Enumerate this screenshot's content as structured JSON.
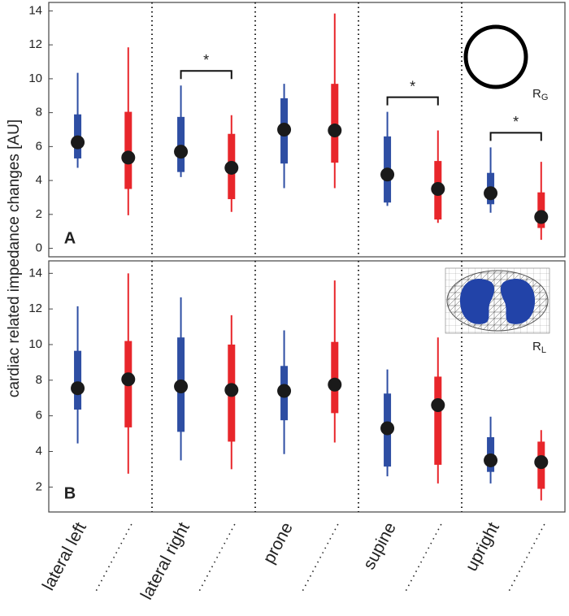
{
  "chart_data": [
    {
      "type": "box",
      "panel_label": "A",
      "ylabel": "cardiac related impedance changes [AU]",
      "ylim": [
        -0.5,
        14.5
      ],
      "yticks": [
        0,
        2,
        4,
        6,
        8,
        10,
        12,
        14
      ],
      "series": [
        {
          "color": "#2e4ea3",
          "whislo": [
            4.75,
            4.2,
            3.55,
            2.5,
            2.1
          ],
          "q1": [
            5.3,
            4.5,
            5.0,
            2.7,
            2.6
          ],
          "med": [
            6.25,
            5.7,
            7.0,
            4.35,
            3.25
          ],
          "q3": [
            7.9,
            7.75,
            8.85,
            6.6,
            4.45
          ],
          "whishi": [
            10.35,
            9.6,
            9.7,
            8.05,
            5.95
          ]
        },
        {
          "color": "#e8262b",
          "whislo": [
            1.95,
            2.15,
            3.55,
            1.5,
            0.5
          ],
          "q1": [
            3.5,
            2.9,
            5.05,
            1.7,
            1.2
          ],
          "med": [
            5.35,
            4.75,
            6.95,
            3.5,
            1.85
          ],
          "q3": [
            8.05,
            6.75,
            9.7,
            5.15,
            3.3
          ],
          "whishi": [
            11.85,
            7.85,
            13.85,
            6.95,
            5.1
          ]
        }
      ],
      "annotations": [
        {
          "text": "*",
          "category": 1
        },
        {
          "text": "*",
          "category": 3
        },
        {
          "text": "*",
          "category": 4
        }
      ],
      "inset": {
        "main": "R",
        "sub": "G"
      }
    },
    {
      "type": "box",
      "panel_label": "B",
      "categories": [
        "lateral left",
        "lateral right",
        "prone",
        "supine",
        "upright"
      ],
      "ylim": [
        0.6,
        14.7
      ],
      "yticks": [
        2,
        4,
        6,
        8,
        10,
        12,
        14
      ],
      "series": [
        {
          "color": "#2e4ea3",
          "whislo": [
            4.45,
            3.5,
            3.85,
            2.6,
            2.2
          ],
          "q1": [
            6.35,
            5.1,
            5.75,
            3.15,
            2.85
          ],
          "med": [
            7.55,
            7.65,
            7.4,
            5.3,
            3.5
          ],
          "q3": [
            9.65,
            10.4,
            8.8,
            7.25,
            4.8
          ],
          "whishi": [
            12.15,
            12.65,
            10.8,
            8.6,
            5.95
          ]
        },
        {
          "color": "#e8262b",
          "whislo": [
            2.75,
            3.0,
            4.5,
            2.2,
            1.25
          ],
          "q1": [
            5.35,
            4.55,
            6.15,
            3.25,
            1.9
          ],
          "med": [
            8.05,
            7.45,
            7.75,
            6.6,
            3.4
          ],
          "q3": [
            10.2,
            10.0,
            10.15,
            8.2,
            4.55
          ],
          "whishi": [
            14.0,
            11.65,
            13.6,
            10.4,
            5.2
          ]
        }
      ],
      "inset": {
        "main": "R",
        "sub": "L"
      }
    }
  ]
}
